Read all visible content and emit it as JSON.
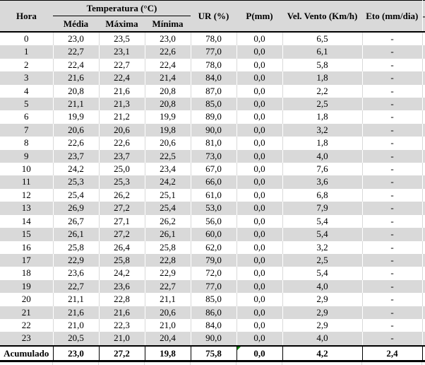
{
  "table": {
    "title_semantic": "hourly-weather-table",
    "header": {
      "hora": "Hora",
      "temperatura_group": "Temperatura (°C)",
      "media": "Média",
      "maxima": "Máxima",
      "minima": "Mínima",
      "ur": "UR (%)",
      "p": "P(mm)",
      "vento": "Vel. Vento (Km/h)",
      "eto": "Eto (mm/dia)",
      "clipped_next_column": "-"
    },
    "col_keys": [
      "hora",
      "media",
      "maxima",
      "minima",
      "ur",
      "p",
      "vento",
      "eto"
    ],
    "rows": [
      [
        "0",
        "23,0",
        "23,5",
        "23,0",
        "78,0",
        "0,0",
        "6,5",
        "-"
      ],
      [
        "1",
        "22,7",
        "23,1",
        "22,6",
        "77,0",
        "0,0",
        "6,1",
        "-"
      ],
      [
        "2",
        "22,4",
        "22,7",
        "22,4",
        "78,0",
        "0,0",
        "5,8",
        "-"
      ],
      [
        "3",
        "21,6",
        "22,4",
        "21,4",
        "84,0",
        "0,0",
        "1,8",
        "-"
      ],
      [
        "4",
        "20,8",
        "21,6",
        "20,8",
        "87,0",
        "0,0",
        "2,2",
        "-"
      ],
      [
        "5",
        "21,1",
        "21,3",
        "20,8",
        "85,0",
        "0,0",
        "2,5",
        "-"
      ],
      [
        "6",
        "19,9",
        "21,2",
        "19,9",
        "89,0",
        "0,0",
        "1,8",
        "-"
      ],
      [
        "7",
        "20,6",
        "20,6",
        "19,8",
        "90,0",
        "0,0",
        "3,2",
        "-"
      ],
      [
        "8",
        "22,6",
        "22,6",
        "20,6",
        "81,0",
        "0,0",
        "1,8",
        "-"
      ],
      [
        "9",
        "23,7",
        "23,7",
        "22,5",
        "73,0",
        "0,0",
        "4,0",
        "-"
      ],
      [
        "10",
        "24,2",
        "25,0",
        "23,4",
        "67,0",
        "0,0",
        "7,6",
        "-"
      ],
      [
        "11",
        "25,3",
        "25,3",
        "24,2",
        "66,0",
        "0,0",
        "3,6",
        "-"
      ],
      [
        "12",
        "25,4",
        "26,2",
        "25,1",
        "61,0",
        "0,0",
        "6,8",
        "-"
      ],
      [
        "13",
        "26,9",
        "27,2",
        "25,4",
        "53,0",
        "0,0",
        "7,9",
        "-"
      ],
      [
        "14",
        "26,7",
        "27,1",
        "26,2",
        "56,0",
        "0,0",
        "5,4",
        "-"
      ],
      [
        "15",
        "26,1",
        "27,2",
        "26,1",
        "60,0",
        "0,0",
        "5,4",
        "-"
      ],
      [
        "16",
        "25,8",
        "26,4",
        "25,8",
        "62,0",
        "0,0",
        "3,2",
        "-"
      ],
      [
        "17",
        "22,9",
        "25,8",
        "22,8",
        "79,0",
        "0,0",
        "2,5",
        "-"
      ],
      [
        "18",
        "23,6",
        "24,2",
        "22,9",
        "72,0",
        "0,0",
        "5,4",
        "-"
      ],
      [
        "19",
        "22,7",
        "23,6",
        "22,7",
        "77,0",
        "0,0",
        "4,0",
        "-"
      ],
      [
        "20",
        "21,1",
        "22,8",
        "21,1",
        "85,0",
        "0,0",
        "2,9",
        "-"
      ],
      [
        "21",
        "21,6",
        "21,6",
        "20,6",
        "86,0",
        "0,0",
        "2,9",
        "-"
      ],
      [
        "22",
        "21,0",
        "22,3",
        "21,0",
        "84,0",
        "0,0",
        "2,9",
        "-"
      ],
      [
        "23",
        "20,5",
        "21,0",
        "20,4",
        "90,0",
        "0,0",
        "4,0",
        "-"
      ]
    ],
    "footer": {
      "label": "Acumulado",
      "cells": [
        "23,0",
        "27,2",
        "19,8",
        "75,8",
        "0,0",
        "4,2",
        "2,4"
      ],
      "indicator": "green-error-triangle-on-p-cell"
    }
  },
  "colors": {
    "header_bg": "#d9d9d9",
    "stripe_bg": "#d9d9d9",
    "row_bg": "#ffffff",
    "heavy_border": "#000000",
    "grid_on_white_rows": "#d9d9d9",
    "grid_on_gray_rows": "#ffffff",
    "indicator_green": "#008000",
    "text": "#000000"
  }
}
